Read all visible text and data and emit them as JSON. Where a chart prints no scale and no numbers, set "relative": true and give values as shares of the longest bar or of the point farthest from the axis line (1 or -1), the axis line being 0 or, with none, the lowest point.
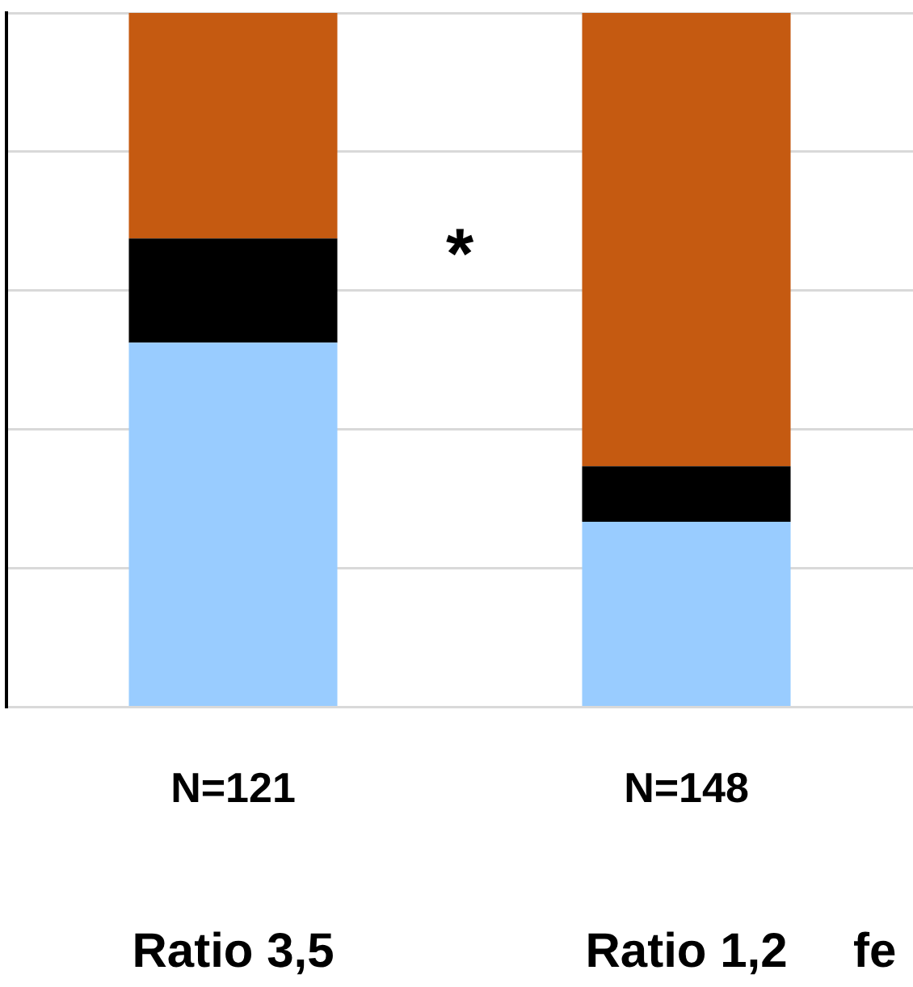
{
  "chart_data": {
    "type": "bar",
    "stacked": true,
    "relative": true,
    "grid": "y",
    "legend": false,
    "categories": [
      "N=121",
      "N=148"
    ],
    "series": [
      {
        "color": "#99ccff",
        "values": [
          0.525,
          0.267
        ]
      },
      {
        "color": "#000000",
        "values": [
          0.15,
          0.08
        ]
      },
      {
        "color": "#c55a11",
        "values": [
          0.325,
          0.653
        ]
      }
    ],
    "annotations": [
      "Ratio 3,5",
      "Ratio 1,2",
      "*",
      "fe"
    ]
  }
}
